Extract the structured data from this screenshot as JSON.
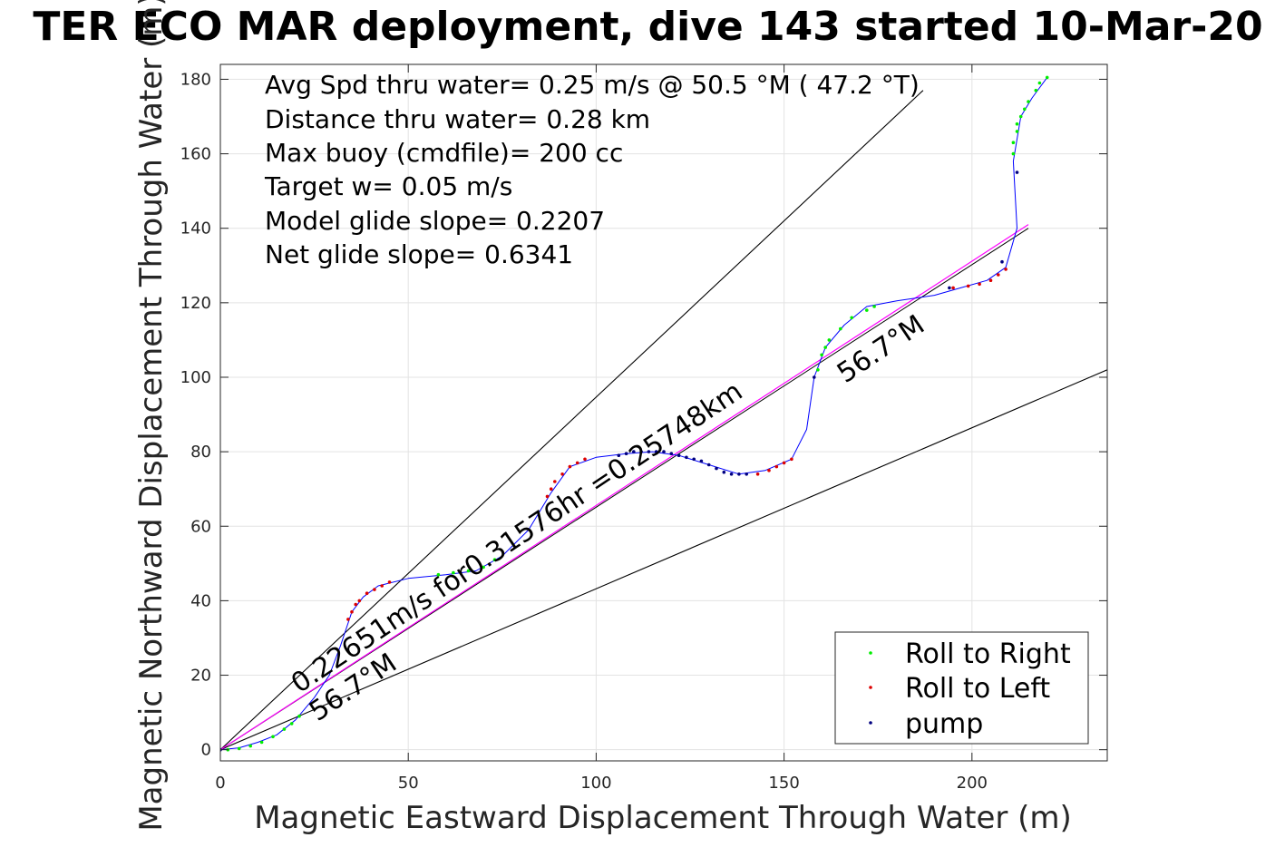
{
  "chart_data": {
    "type": "scatter",
    "title": "TER ECO MAR deployment, dive 143 started 10-Mar-20",
    "xlabel": "Magnetic Eastward Displacement Through Water (m)",
    "ylabel": "Magnetic Northward Displacement Through Water (m)",
    "xlim": [
      0,
      236
    ],
    "ylim": [
      -3,
      184
    ],
    "xticks": [
      "0",
      "50",
      "100",
      "150",
      "200"
    ],
    "yticks": [
      "0",
      "20",
      "40",
      "60",
      "80",
      "100",
      "120",
      "140",
      "160",
      "180"
    ],
    "grid": true,
    "legend_position": "bottom-right",
    "stats": [
      "Avg Spd thru water=  0.25 m/s @  50.5 °M ( 47.2 °T)",
      "Distance thru water=  0.28 km",
      "Max buoy (cmdfile)= 200 cc",
      "Target w= 0.05 m/s",
      "Model glide slope= 0.2207",
      "Net glide slope= 0.6341"
    ],
    "annotations": {
      "speed": "0.22651m/s for0.31576hr =0.25748km",
      "heading_low": "56.7°M",
      "heading_high": "56.7°M"
    },
    "series": [
      {
        "name": "Roll to Right",
        "color": "#00ee00",
        "points": [
          [
            2,
            0
          ],
          [
            5,
            0.3
          ],
          [
            8,
            1
          ],
          [
            11,
            2
          ],
          [
            14,
            3.5
          ],
          [
            17,
            5.5
          ],
          [
            19,
            7
          ],
          [
            21,
            9
          ],
          [
            58,
            47
          ],
          [
            62,
            47.5
          ],
          [
            66,
            48
          ],
          [
            70,
            49
          ],
          [
            73,
            51
          ],
          [
            159,
            102
          ],
          [
            160,
            106
          ],
          [
            161,
            108
          ],
          [
            162,
            110
          ],
          [
            165,
            113
          ],
          [
            168,
            116
          ],
          [
            172,
            118
          ],
          [
            174,
            119
          ],
          [
            211,
            160
          ],
          [
            211,
            163
          ],
          [
            212,
            166
          ],
          [
            212,
            168
          ],
          [
            213,
            170
          ],
          [
            214,
            172
          ],
          [
            215,
            174
          ],
          [
            217,
            177
          ],
          [
            218,
            179
          ],
          [
            220,
            180.5
          ]
        ]
      },
      {
        "name": "Roll to Left",
        "color": "#dd0000",
        "points": [
          [
            34,
            35
          ],
          [
            35,
            37
          ],
          [
            36,
            39
          ],
          [
            37,
            40
          ],
          [
            39,
            42
          ],
          [
            41,
            43
          ],
          [
            43,
            44
          ],
          [
            45,
            45
          ],
          [
            87,
            68
          ],
          [
            88,
            70
          ],
          [
            89,
            72
          ],
          [
            91,
            74
          ],
          [
            93,
            76
          ],
          [
            95,
            77
          ],
          [
            97,
            78
          ],
          [
            143,
            74
          ],
          [
            146,
            75
          ],
          [
            148,
            76
          ],
          [
            150,
            77
          ],
          [
            152,
            78
          ],
          [
            195,
            124
          ],
          [
            199,
            124.5
          ],
          [
            202,
            125
          ],
          [
            205,
            126
          ],
          [
            207,
            127.5
          ],
          [
            209,
            129
          ]
        ]
      },
      {
        "name": "pump",
        "color": "#000080",
        "points": [
          [
            0,
            0
          ],
          [
            106,
            79
          ],
          [
            108,
            79.5
          ],
          [
            110,
            80
          ],
          [
            112,
            80
          ],
          [
            114,
            80
          ],
          [
            116,
            80
          ],
          [
            118,
            80
          ],
          [
            120,
            79.5
          ],
          [
            122,
            79
          ],
          [
            124,
            78.5
          ],
          [
            126,
            78
          ],
          [
            128,
            77.5
          ],
          [
            130,
            76.5
          ],
          [
            132,
            75.5
          ],
          [
            134,
            74.5
          ],
          [
            136,
            74
          ],
          [
            138,
            74
          ],
          [
            140,
            74
          ],
          [
            158,
            100
          ],
          [
            194,
            124
          ],
          [
            208,
            131
          ],
          [
            212,
            155
          ]
        ]
      }
    ],
    "track": {
      "color": "#0000ff",
      "points": [
        [
          0,
          0
        ],
        [
          5,
          0.5
        ],
        [
          10,
          2
        ],
        [
          15,
          4
        ],
        [
          20,
          8
        ],
        [
          25,
          14
        ],
        [
          29,
          20
        ],
        [
          32,
          28
        ],
        [
          35,
          37
        ],
        [
          38,
          41
        ],
        [
          42,
          44
        ],
        [
          50,
          46
        ],
        [
          60,
          47
        ],
        [
          68,
          48
        ],
        [
          75,
          52
        ],
        [
          82,
          59
        ],
        [
          88,
          69
        ],
        [
          93,
          76
        ],
        [
          100,
          78.5
        ],
        [
          108,
          79.5
        ],
        [
          115,
          80
        ],
        [
          122,
          79
        ],
        [
          130,
          76.5
        ],
        [
          138,
          74
        ],
        [
          145,
          75
        ],
        [
          152,
          78
        ],
        [
          156,
          86
        ],
        [
          158,
          100
        ],
        [
          161,
          108
        ],
        [
          166,
          114
        ],
        [
          172,
          119
        ],
        [
          180,
          120.5
        ],
        [
          190,
          122
        ],
        [
          197,
          124
        ],
        [
          204,
          126
        ],
        [
          209,
          129.5
        ],
        [
          212,
          140
        ],
        [
          211,
          158
        ],
        [
          213,
          170
        ],
        [
          216,
          175
        ],
        [
          220,
          180.5
        ]
      ]
    },
    "reference_lines": {
      "mean_heading": {
        "color": "#ff00ff",
        "points": [
          [
            0,
            0
          ],
          [
            215,
            141
          ]
        ]
      },
      "fit": {
        "color": "#000000",
        "points": [
          [
            0,
            0
          ],
          [
            215,
            140
          ]
        ]
      },
      "bound_upper": {
        "color": "#000000",
        "points": [
          [
            0,
            0
          ],
          [
            187,
            177
          ]
        ]
      },
      "bound_lower": {
        "color": "#000000",
        "points": [
          [
            0,
            0
          ],
          [
            236,
            102
          ]
        ]
      }
    }
  }
}
